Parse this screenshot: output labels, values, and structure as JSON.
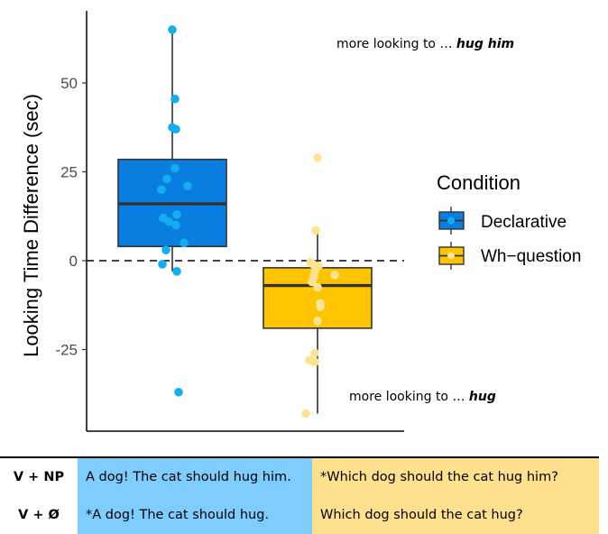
{
  "chart_data": {
    "type": "box",
    "ylabel": "Looking Time Difference (sec)",
    "xlabel": "",
    "ylim": [
      -48,
      70
    ],
    "yticks": [
      -25,
      0,
      25,
      50
    ],
    "ytick_labels": [
      "-25",
      "0",
      "25",
      "50"
    ],
    "reference_line": 0,
    "legend": {
      "title": "Condition",
      "placement": "right",
      "entries": [
        "Declarative",
        "Wh−question"
      ]
    },
    "groups": [
      {
        "name": "Declarative",
        "color": "#0a7de0",
        "point_color": "#12aef0",
        "box": {
          "q1": 4,
          "median": 16,
          "q3": 28.5,
          "whisker_low": -3,
          "whisker_high": 65
        },
        "points": [
          65,
          45.5,
          37.5,
          37,
          26,
          23,
          21,
          20,
          13,
          12,
          11,
          10,
          5,
          3,
          -1,
          -3,
          -37
        ]
      },
      {
        "name": "Wh−question",
        "color": "#fec400",
        "point_color": "#fde392",
        "box": {
          "q1": -19,
          "median": -7,
          "q3": -2,
          "whisker_low": -43,
          "whisker_high": 9
        },
        "points": [
          29,
          8.5,
          -0.5,
          -1,
          -1.5,
          -3,
          -4,
          -4.5,
          -6,
          -7.5,
          -12,
          -13,
          -17,
          -26,
          -28,
          -28.5,
          -43
        ]
      }
    ],
    "annotations": [
      {
        "prefix": "more looking to … ",
        "emph": "hug him"
      },
      {
        "prefix": "more looking to … ",
        "emph": "hug"
      }
    ]
  },
  "table": {
    "rows": [
      {
        "head": "V + NP",
        "declarative": "A dog! The cat should hug him.",
        "whq": "*Which dog should the cat hug him?"
      },
      {
        "head": "V + Ø",
        "declarative": "*A dog! The cat should hug.",
        "whq": "Which dog should the cat hug?"
      }
    ],
    "colors": {
      "declarative_bg": "#7fccff",
      "whq_bg": "#ffe08f"
    }
  }
}
